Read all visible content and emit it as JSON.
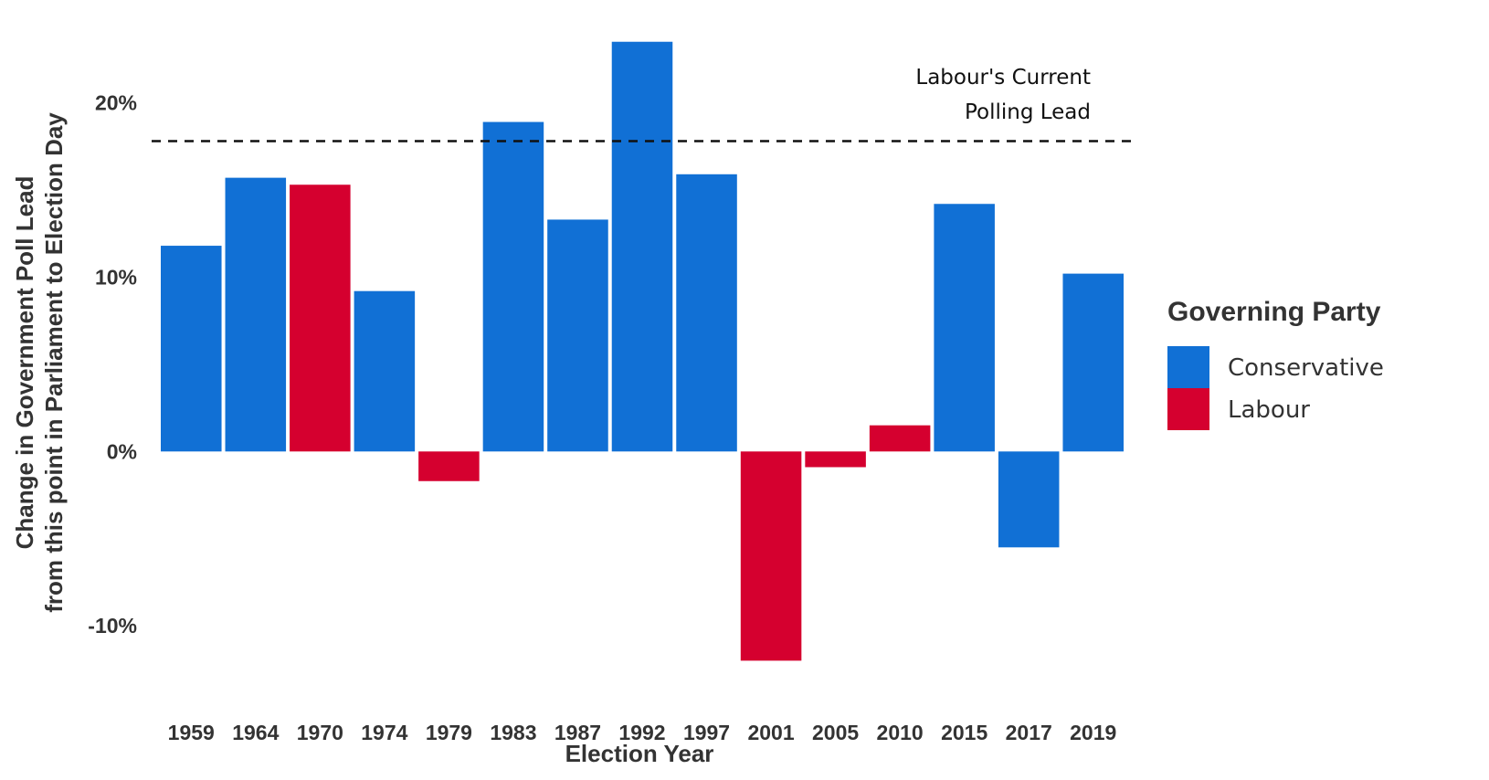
{
  "chart_data": {
    "type": "bar",
    "title": "",
    "xlabel": "Election Year",
    "ylabel_lines": [
      "Change in Government Poll Lead",
      "from this point in Parliament to Election Day"
    ],
    "ylim": [
      -13.5,
      23.8
    ],
    "y_ticks": [
      {
        "value": -10,
        "label": "-10%"
      },
      {
        "value": 0,
        "label": "0%"
      },
      {
        "value": 10,
        "label": "10%"
      },
      {
        "value": 20,
        "label": "20%"
      }
    ],
    "grid": false,
    "categories": [
      "1959",
      "1964",
      "1970",
      "1974",
      "1979",
      "1983",
      "1987",
      "1992",
      "1997",
      "2001",
      "2005",
      "2010",
      "2015",
      "2017",
      "2019"
    ],
    "values": [
      11.8,
      15.7,
      15.3,
      9.2,
      -1.7,
      18.9,
      13.3,
      23.5,
      15.9,
      -12.0,
      -0.9,
      1.5,
      14.2,
      -5.5,
      10.2
    ],
    "party": [
      "Conservative",
      "Conservative",
      "Labour",
      "Conservative",
      "Labour",
      "Conservative",
      "Conservative",
      "Conservative",
      "Conservative",
      "Labour",
      "Labour",
      "Labour",
      "Conservative",
      "Conservative",
      "Conservative"
    ],
    "reference_line": {
      "value": 17.8,
      "label_lines": [
        "Labour's Current",
        "Polling Lead"
      ]
    },
    "legend": {
      "title": "Governing Party",
      "position": "right",
      "entries": [
        {
          "name": "Conservative",
          "color": "#1170d5"
        },
        {
          "name": "Labour",
          "color": "#d5002f"
        }
      ]
    },
    "colors": {
      "Conservative": "#1170d5",
      "Labour": "#d5002f"
    }
  }
}
